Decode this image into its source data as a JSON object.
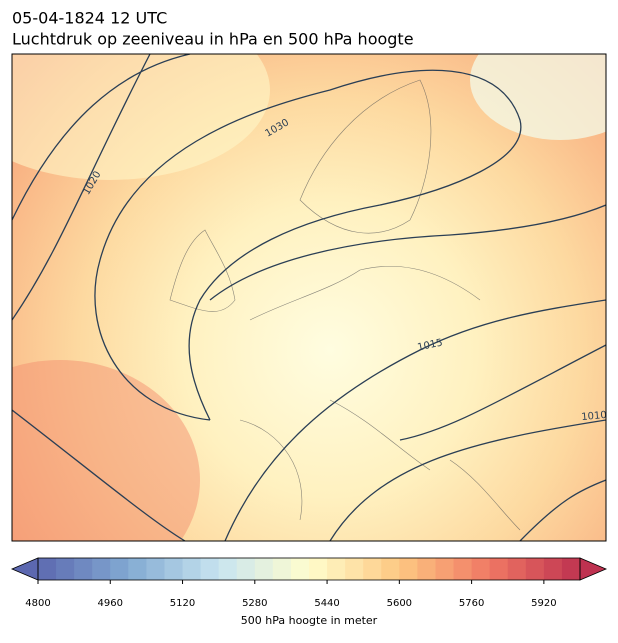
{
  "header": {
    "date": "05-04-1824 12 UTC",
    "title": "Luchtdruk op zeeniveau in hPa en 500 hPa hoogte"
  },
  "map": {
    "isobar_labels": [
      "1030",
      "1020",
      "1015",
      "1010"
    ]
  },
  "colorbar": {
    "range": [
      4800,
      6000
    ],
    "ticks": [
      4800,
      4960,
      5120,
      5280,
      5440,
      5600,
      5760,
      5920
    ],
    "label": "500 hPa hoogte in meter"
  }
}
